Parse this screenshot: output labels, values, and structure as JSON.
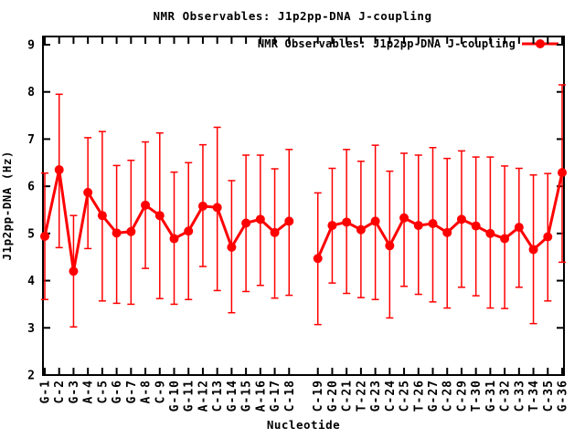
{
  "page": {
    "background": "#ffffff",
    "text_color": "#000000"
  },
  "chart_data": {
    "type": "line",
    "title": "NMR Observables: J1p2pp-DNA J-coupling",
    "xlabel": "Nucleotide",
    "ylabel": "J1p2pp-DNA (Hz)",
    "ylim": [
      2,
      9.2
    ],
    "yticks": [
      2,
      3,
      4,
      5,
      6,
      7,
      8,
      9
    ],
    "grid": false,
    "legend_position": "top-right-inside",
    "categories": [
      "G-1",
      "C-2",
      "G-3",
      "A-4",
      "C-5",
      "G-6",
      "G-7",
      "A-8",
      "C-9",
      "G-10",
      "G-11",
      "A-12",
      "C-13",
      "G-14",
      "G-15",
      "A-16",
      "G-17",
      "C-18",
      "C-19",
      "G-20",
      "C-21",
      "T-22",
      "G-23",
      "C-24",
      "C-25",
      "T-26",
      "G-27",
      "C-28",
      "C-29",
      "T-30",
      "G-31",
      "C-32",
      "C-33",
      "T-34",
      "C-35",
      "G-36"
    ],
    "gap_after_index": 17,
    "series": [
      {
        "name": "NMR Observables: J1p2pp-DNA J-coupling",
        "color": "#ff0000",
        "marker": "filled-circle",
        "values": [
          4.94,
          6.35,
          4.2,
          5.87,
          5.38,
          5.01,
          5.04,
          5.6,
          5.38,
          4.89,
          5.05,
          5.58,
          5.55,
          4.71,
          5.22,
          5.3,
          5.02,
          5.26,
          4.47,
          5.17,
          5.24,
          5.08,
          5.26,
          4.74,
          5.33,
          5.17,
          5.21,
          5.02,
          5.3,
          5.16,
          5.0,
          4.89,
          5.13,
          4.66,
          4.93,
          6.29
        ],
        "err_low": [
          3.6,
          4.7,
          3.02,
          4.68,
          3.57,
          3.52,
          3.5,
          4.26,
          3.62,
          3.5,
          3.6,
          4.3,
          3.79,
          3.32,
          3.77,
          3.9,
          3.63,
          3.69,
          3.07,
          3.95,
          3.73,
          3.64,
          3.6,
          3.21,
          3.88,
          3.71,
          3.55,
          3.42,
          3.86,
          3.68,
          3.42,
          3.41,
          3.86,
          3.09,
          3.57,
          4.39
        ],
        "err_high": [
          6.28,
          7.95,
          5.38,
          7.03,
          7.16,
          6.44,
          6.55,
          6.94,
          7.13,
          6.3,
          6.5,
          6.88,
          7.25,
          6.12,
          6.66,
          6.66,
          6.37,
          6.78,
          5.86,
          6.38,
          6.78,
          6.53,
          6.87,
          6.32,
          6.7,
          6.66,
          6.82,
          6.59,
          6.75,
          6.62,
          6.62,
          6.43,
          6.38,
          6.24,
          6.27,
          8.15
        ]
      }
    ]
  }
}
